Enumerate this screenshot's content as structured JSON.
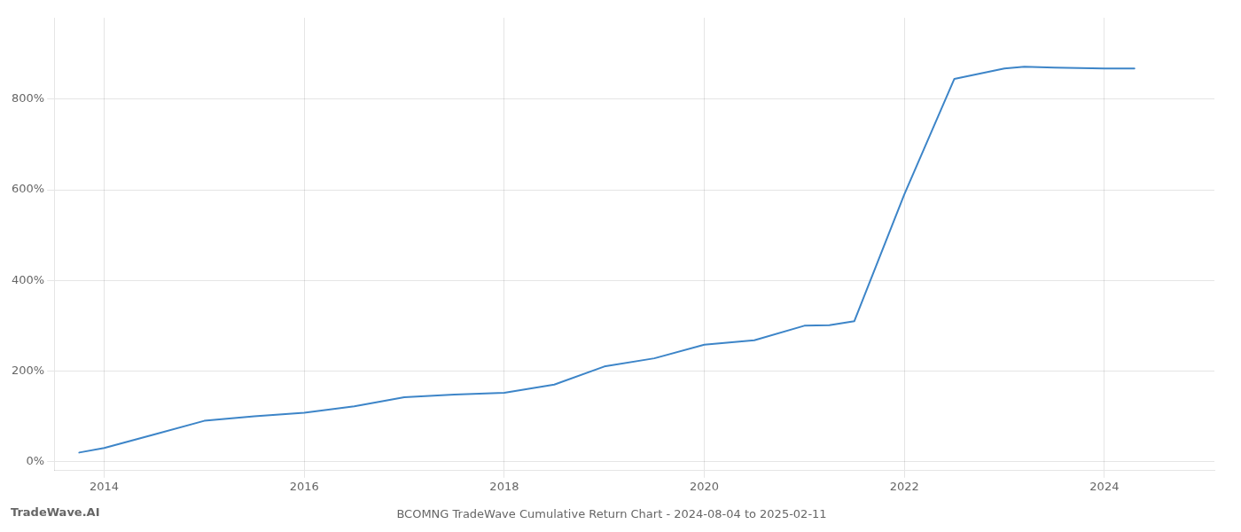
{
  "chart_data": {
    "type": "line",
    "title": "BCOMNG TradeWave Cumulative Return Chart - 2024-08-04 to 2025-02-11",
    "annotations": [
      "TradeWave.AI"
    ],
    "x": [
      2013.75,
      2014.0,
      2014.5,
      2015.0,
      2015.5,
      2016.0,
      2016.5,
      2017.0,
      2017.5,
      2018.0,
      2018.5,
      2019.0,
      2019.5,
      2020.0,
      2020.5,
      2021.0,
      2021.25,
      2021.5,
      2022.0,
      2022.5,
      2023.0,
      2023.2,
      2023.5,
      2024.0,
      2024.3
    ],
    "values": [
      20,
      30,
      60,
      90,
      100,
      108,
      122,
      142,
      148,
      152,
      170,
      210,
      228,
      258,
      268,
      300,
      301,
      310,
      590,
      845,
      868,
      872,
      870,
      868,
      868
    ],
    "color": "#3d85c8",
    "xlim": [
      2013.5,
      2025.1
    ],
    "xticks": [
      2014,
      2016,
      2018,
      2020,
      2022,
      2024
    ],
    "ylim": [
      -20,
      980
    ],
    "yticks": [
      {
        "value": 0,
        "label": "0%"
      },
      {
        "value": 200,
        "label": "200%"
      },
      {
        "value": 400,
        "label": "400%"
      },
      {
        "value": 600,
        "label": "600%"
      },
      {
        "value": 800,
        "label": "800%"
      }
    ],
    "grid": true
  }
}
